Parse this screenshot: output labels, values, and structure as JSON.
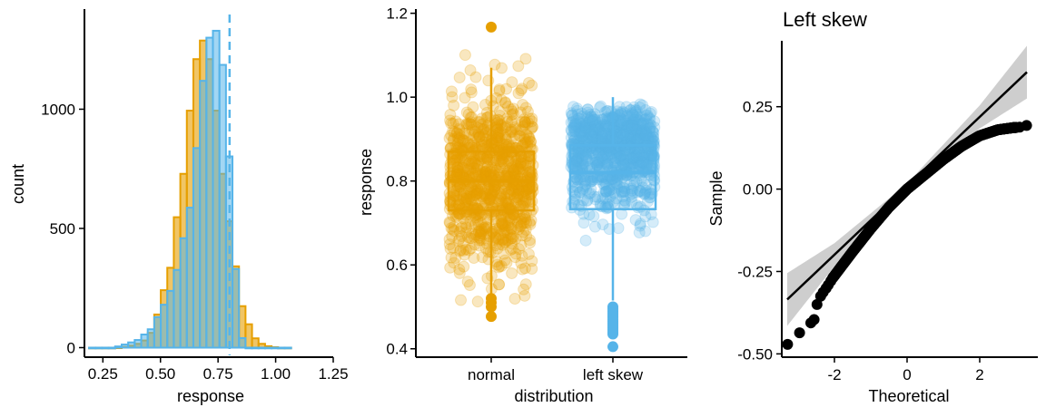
{
  "colors": {
    "normal": "#E69F00",
    "skew": "#56B4E9",
    "qq": "#000000",
    "band": "#BEBEBE"
  },
  "chart_data": [
    {
      "type": "histogram",
      "title": "",
      "xlabel": "response",
      "ylabel": "count",
      "xlim": [
        0.17,
        1.25
      ],
      "ylim": [
        -40,
        1420
      ],
      "xticks": [
        0.25,
        0.5,
        0.75,
        1.0,
        1.25
      ],
      "xtick_labels": [
        "0.25",
        "0.50",
        "0.75",
        "1.00",
        "1.25"
      ],
      "yticks": [
        0,
        500,
        1000
      ],
      "ytick_labels": [
        "0",
        "500",
        "1000"
      ],
      "bin_width": 0.0283,
      "bin_start": 0.19,
      "median_line": 0.8,
      "series": [
        {
          "name": "normal",
          "counts": [
            0,
            0,
            0,
            0,
            1,
            3,
            8,
            16,
            30,
            62,
            139,
            241,
            335,
            547,
            729,
            994,
            1210,
            1288,
            1210,
            994,
            729,
            530,
            341,
            174,
            98,
            39,
            16,
            6,
            2,
            0,
            0
          ]
        },
        {
          "name": "left skew",
          "counts": [
            0,
            0,
            0,
            0,
            5,
            13,
            22,
            32,
            55,
            77,
            128,
            180,
            238,
            326,
            459,
            587,
            837,
            1119,
            1300,
            1329,
            1186,
            802,
            330,
            40,
            0,
            0,
            0,
            0,
            0,
            0,
            0
          ]
        }
      ]
    },
    {
      "type": "boxplot",
      "title": "",
      "xlabel": "distribution",
      "ylabel": "response",
      "categories": [
        "normal",
        "left skew"
      ],
      "ylim": [
        0.38,
        1.21
      ],
      "yticks": [
        0.4,
        0.6,
        0.8,
        1.0,
        1.2
      ],
      "ytick_labels": [
        "0.4",
        "0.6",
        "0.8",
        "1.0",
        "1.2"
      ],
      "boxes": [
        {
          "name": "normal",
          "q1": 0.73,
          "median": 0.8,
          "q3": 0.87,
          "whisker_low": 0.53,
          "whisker_high": 1.07,
          "outliers": [
            1.167,
            0.52,
            0.51,
            0.5,
            0.477
          ]
        },
        {
          "name": "left skew",
          "q1": 0.733,
          "median": 0.82,
          "q3": 0.885,
          "whisker_low": 0.515,
          "whisker_high": 1.0,
          "outliers": [
            0.5,
            0.495,
            0.49,
            0.485,
            0.48,
            0.475,
            0.47,
            0.465,
            0.46,
            0.455,
            0.45,
            0.445,
            0.44,
            0.435,
            0.405
          ]
        }
      ],
      "jitter": [
        {
          "name": "normal",
          "n": 1000,
          "mean": 0.8,
          "sd": 0.1,
          "min": 0.48,
          "max": 1.17
        },
        {
          "name": "left skew",
          "n": 1000,
          "mean": 0.8,
          "sd": 0.11,
          "min": 0.4,
          "max": 1.0
        }
      ]
    },
    {
      "type": "scatter",
      "title": "Left skew",
      "xlabel": "Theoretical",
      "ylabel": "Sample",
      "xlim": [
        -3.45,
        3.6
      ],
      "ylim": [
        -0.51,
        0.45
      ],
      "xticks": [
        -2,
        0,
        2
      ],
      "xtick_labels": [
        "-2",
        "0",
        "2"
      ],
      "yticks": [
        -0.5,
        -0.25,
        0.0,
        0.25
      ],
      "ytick_labels": [
        "-0.50",
        "-0.25",
        "0.00",
        "0.25"
      ],
      "reference_line": {
        "x": [
          -3.3,
          3.3
        ],
        "y": [
          -0.335,
          0.355
        ]
      },
      "band_halfwidth": {
        "x": [
          -3.3,
          -2.0,
          0.0,
          2.0,
          3.3
        ],
        "h": [
          0.08,
          0.035,
          0.007,
          0.035,
          0.08
        ]
      },
      "points": [
        [
          -3.29,
          -0.471
        ],
        [
          -2.96,
          -0.436
        ],
        [
          -2.65,
          -0.406
        ],
        [
          -2.56,
          -0.396
        ],
        [
          -2.48,
          -0.35
        ],
        [
          -2.38,
          -0.325
        ],
        [
          -2.31,
          -0.313
        ],
        [
          -2.23,
          -0.301
        ],
        [
          -2.17,
          -0.291
        ],
        [
          -2.1,
          -0.279
        ]
      ],
      "curve": {
        "x": [
          -2.05,
          -1.5,
          -1.0,
          -0.5,
          0.0,
          0.5,
          1.0,
          1.5,
          2.0,
          2.5,
          2.9,
          3.0
        ],
        "y": [
          -0.27,
          -0.19,
          -0.12,
          -0.055,
          0.0,
          0.045,
          0.09,
          0.13,
          0.162,
          0.18,
          0.186,
          0.187
        ]
      },
      "upper_points": [
        [
          3.29,
          0.193
        ],
        [
          3.1,
          0.188
        ],
        [
          2.95,
          0.187
        ]
      ]
    }
  ]
}
